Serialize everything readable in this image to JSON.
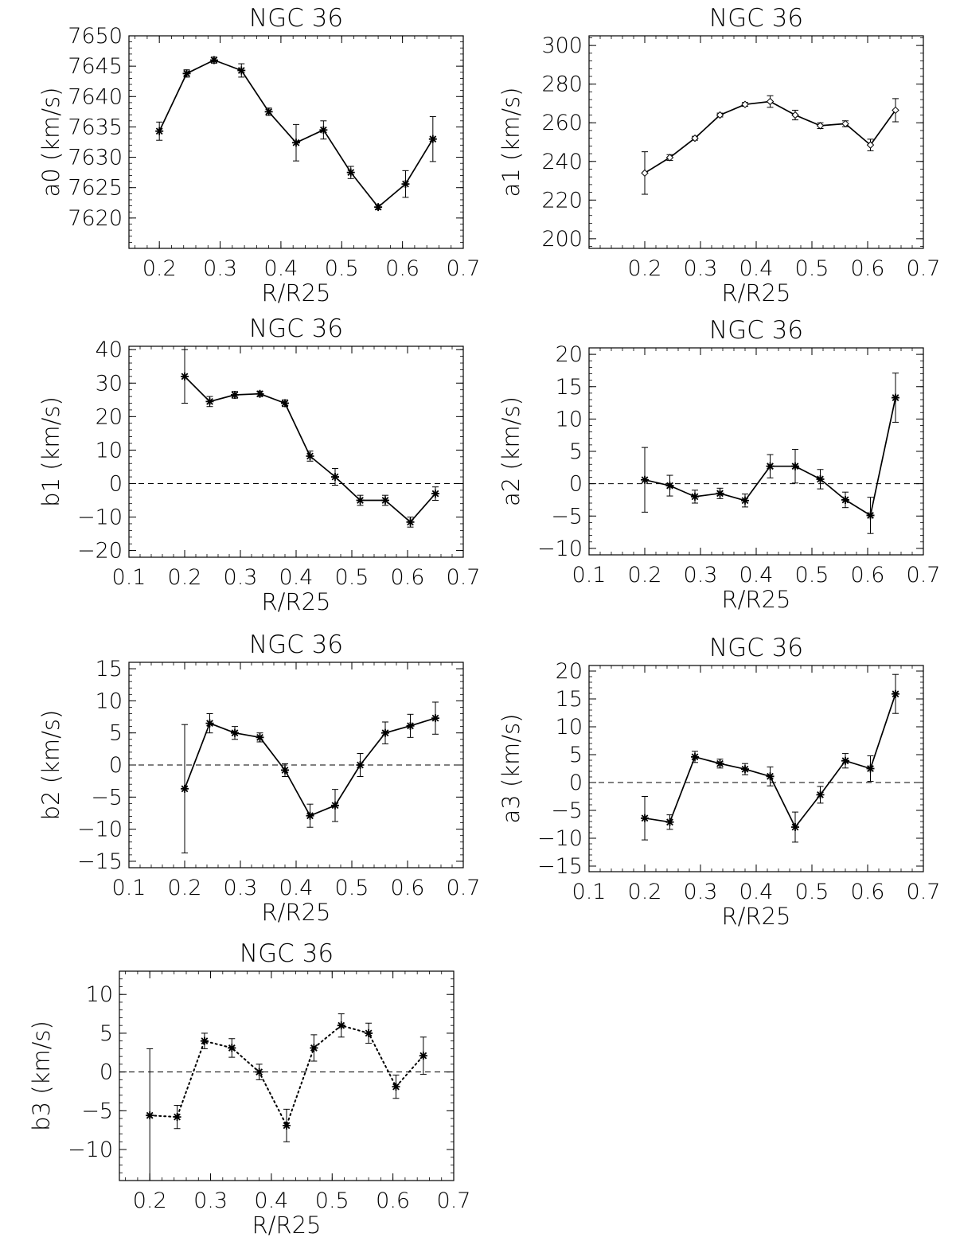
{
  "chart_data": [
    {
      "type": "line",
      "title": "NGC 36",
      "xlabel": "R/R25",
      "ylabel": "a0 (km/s)",
      "xlim": [
        0.15,
        0.7
      ],
      "ylim": [
        7615,
        7650
      ],
      "xticks": [
        0.2,
        0.3,
        0.4,
        0.5,
        0.6,
        0.7
      ],
      "xtick_labels": [
        "0.2",
        "0.3",
        "0.4",
        "0.5",
        "0.6",
        "0.7"
      ],
      "yticks": [
        7620,
        7625,
        7630,
        7635,
        7640,
        7645,
        7650
      ],
      "ytick_labels": [
        "7620",
        "7625",
        "7630",
        "7635",
        "7640",
        "7645",
        "7650"
      ],
      "zero_line": false,
      "line_style": "solid",
      "marker": "asterisk",
      "series": [
        {
          "name": "a0",
          "x": [
            0.2,
            0.245,
            0.29,
            0.335,
            0.38,
            0.425,
            0.47,
            0.515,
            0.56,
            0.605,
            0.65
          ],
          "y": [
            7634.3,
            7643.8,
            7646.0,
            7644.3,
            7637.5,
            7632.4,
            7634.5,
            7627.5,
            7621.8,
            7625.6,
            7633.0
          ],
          "err": [
            1.5,
            0.6,
            0.5,
            1.1,
            0.6,
            3.0,
            1.5,
            1.0,
            0.4,
            2.2,
            3.7
          ]
        }
      ]
    },
    {
      "type": "line",
      "title": "NGC 36",
      "xlabel": "R/R25",
      "ylabel": "a1 (km/s)",
      "xlim": [
        0.1,
        0.7
      ],
      "ylim": [
        195,
        305
      ],
      "xticks": [
        0.2,
        0.3,
        0.4,
        0.5,
        0.6,
        0.7
      ],
      "xtick_labels": [
        "0.2",
        "0.3",
        "0.4",
        "0.5",
        "0.6",
        "0.7"
      ],
      "yticks": [
        200,
        220,
        240,
        260,
        280,
        300
      ],
      "ytick_labels": [
        "200",
        "220",
        "240",
        "260",
        "280",
        "300"
      ],
      "zero_line": false,
      "line_style": "solid",
      "marker": "diamond",
      "series": [
        {
          "name": "a1",
          "x": [
            0.2,
            0.245,
            0.29,
            0.335,
            0.38,
            0.425,
            0.47,
            0.515,
            0.56,
            0.605,
            0.65
          ],
          "y": [
            234,
            242,
            252,
            264,
            269.5,
            271,
            264,
            258.5,
            259.5,
            248.5,
            266.5
          ],
          "err": [
            11,
            1.5,
            1,
            1,
            1,
            3,
            2.5,
            1.5,
            1.5,
            3,
            6
          ]
        }
      ]
    },
    {
      "type": "line",
      "title": "NGC 36",
      "xlabel": "R/R25",
      "ylabel": "b1 (km/s)",
      "xlim": [
        0.1,
        0.7
      ],
      "ylim": [
        -22,
        41
      ],
      "xticks": [
        0.1,
        0.2,
        0.3,
        0.4,
        0.5,
        0.6,
        0.7
      ],
      "xtick_labels": [
        "0.1",
        "0.2",
        "0.3",
        "0.4",
        "0.5",
        "0.6",
        "0.7"
      ],
      "yticks": [
        -20,
        -10,
        0,
        10,
        20,
        30,
        40
      ],
      "ytick_labels": [
        "−20",
        "−10",
        "0",
        "10",
        "20",
        "30",
        "40"
      ],
      "zero_line": true,
      "line_style": "solid",
      "marker": "asterisk",
      "series": [
        {
          "name": "b1",
          "x": [
            0.2,
            0.245,
            0.29,
            0.335,
            0.38,
            0.425,
            0.47,
            0.515,
            0.56,
            0.605,
            0.65
          ],
          "y": [
            32,
            24.5,
            26.5,
            26.8,
            24,
            8.2,
            2,
            -5,
            -5,
            -11.5,
            -3
          ],
          "err": [
            8,
            1.5,
            1,
            0.8,
            1,
            1.5,
            2.5,
            1.5,
            1.5,
            1.5,
            2
          ]
        }
      ]
    },
    {
      "type": "line",
      "title": "NGC 36",
      "xlabel": "R/R25",
      "ylabel": "a2 (km/s)",
      "xlim": [
        0.1,
        0.7
      ],
      "ylim": [
        -11,
        21
      ],
      "xticks": [
        0.1,
        0.2,
        0.3,
        0.4,
        0.5,
        0.6,
        0.7
      ],
      "xtick_labels": [
        "0.1",
        "0.2",
        "0.3",
        "0.4",
        "0.5",
        "0.6",
        "0.7"
      ],
      "yticks": [
        -10,
        -5,
        0,
        5,
        10,
        15,
        20
      ],
      "ytick_labels": [
        "−10",
        "−5",
        "0",
        "5",
        "10",
        "15",
        "20"
      ],
      "zero_line": true,
      "line_style": "solid",
      "marker": "asterisk",
      "series": [
        {
          "name": "a2",
          "x": [
            0.2,
            0.245,
            0.29,
            0.335,
            0.38,
            0.425,
            0.47,
            0.515,
            0.56,
            0.605,
            0.65
          ],
          "y": [
            0.6,
            -0.3,
            -2,
            -1.5,
            -2.6,
            2.7,
            2.7,
            0.7,
            -2.5,
            -4.9,
            13.3
          ],
          "err": [
            5,
            1.6,
            1,
            0.8,
            1,
            1.8,
            2.6,
            1.5,
            1.2,
            2.8,
            3.8
          ]
        }
      ]
    },
    {
      "type": "line",
      "title": "NGC 36",
      "xlabel": "R/R25",
      "ylabel": "b2 (km/s)",
      "xlim": [
        0.1,
        0.7
      ],
      "ylim": [
        -16,
        16
      ],
      "xticks": [
        0.1,
        0.2,
        0.3,
        0.4,
        0.5,
        0.6,
        0.7
      ],
      "xtick_labels": [
        "0.1",
        "0.2",
        "0.3",
        "0.4",
        "0.5",
        "0.6",
        "0.7"
      ],
      "yticks": [
        -15,
        -10,
        -5,
        0,
        5,
        10,
        15
      ],
      "ytick_labels": [
        "−15",
        "−10",
        "−5",
        "0",
        "5",
        "10",
        "15"
      ],
      "zero_line": true,
      "line_style": "solid",
      "marker": "asterisk",
      "series": [
        {
          "name": "b2",
          "x": [
            0.2,
            0.245,
            0.29,
            0.335,
            0.38,
            0.425,
            0.47,
            0.515,
            0.56,
            0.605,
            0.65
          ],
          "y": [
            -3.7,
            6.5,
            5,
            4.3,
            -0.8,
            -7.9,
            -6.3,
            0,
            5,
            6.1,
            7.3
          ],
          "err": [
            10,
            1.5,
            1,
            0.7,
            1,
            1.8,
            2.5,
            1.8,
            1.7,
            1.8,
            2.5
          ]
        }
      ]
    },
    {
      "type": "line",
      "title": "NGC 36",
      "xlabel": "R/R25",
      "ylabel": "a3 (km/s)",
      "xlim": [
        0.1,
        0.7
      ],
      "ylim": [
        -16,
        21
      ],
      "xticks": [
        0.1,
        0.2,
        0.3,
        0.4,
        0.5,
        0.6,
        0.7
      ],
      "xtick_labels": [
        "0.1",
        "0.2",
        "0.3",
        "0.4",
        "0.5",
        "0.6",
        "0.7"
      ],
      "yticks": [
        -15,
        -10,
        -5,
        0,
        5,
        10,
        15,
        20
      ],
      "ytick_labels": [
        "−15",
        "−10",
        "−5",
        "0",
        "5",
        "10",
        "15",
        "20"
      ],
      "zero_line": true,
      "line_style": "solid",
      "marker": "asterisk",
      "series": [
        {
          "name": "a3",
          "x": [
            0.2,
            0.245,
            0.29,
            0.335,
            0.38,
            0.425,
            0.47,
            0.515,
            0.56,
            0.605,
            0.65
          ],
          "y": [
            -6.4,
            -7.1,
            4.6,
            3.4,
            2.4,
            1.1,
            -8,
            -2.2,
            3.9,
            2.5,
            15.9
          ],
          "err": [
            3.9,
            1.3,
            1,
            0.8,
            1,
            1.7,
            2.7,
            1.5,
            1.3,
            2.3,
            3.5
          ]
        }
      ]
    },
    {
      "type": "line",
      "title": "NGC 36",
      "xlabel": "R/R25",
      "ylabel": "b3 (km/s)",
      "xlim": [
        0.15,
        0.7
      ],
      "ylim": [
        -14,
        13
      ],
      "xticks": [
        0.2,
        0.3,
        0.4,
        0.5,
        0.6,
        0.7
      ],
      "xtick_labels": [
        "0.2",
        "0.3",
        "0.4",
        "0.5",
        "0.6",
        "0.7"
      ],
      "yticks": [
        -10,
        -5,
        0,
        5,
        10
      ],
      "ytick_labels": [
        "−10",
        "−5",
        "0",
        "5",
        "10"
      ],
      "zero_line": true,
      "line_style": "dotted",
      "marker": "asterisk",
      "series": [
        {
          "name": "b3",
          "x": [
            0.2,
            0.245,
            0.29,
            0.335,
            0.38,
            0.425,
            0.47,
            0.515,
            0.56,
            0.605,
            0.65
          ],
          "y": [
            -5.6,
            -5.8,
            4,
            3.1,
            0,
            -6.9,
            3.1,
            6,
            5,
            -1.9,
            2.1
          ],
          "err": [
            8.6,
            1.5,
            1,
            1.2,
            1,
            2.1,
            1.7,
            1.5,
            1.3,
            1.5,
            2.4
          ]
        }
      ]
    }
  ]
}
